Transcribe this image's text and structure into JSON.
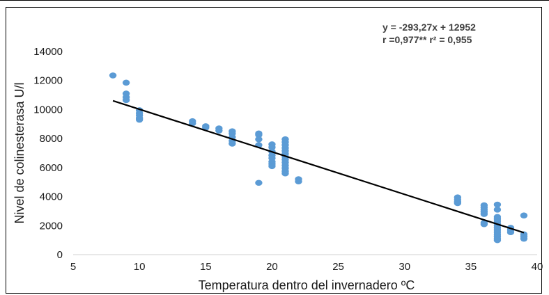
{
  "chart_data": {
    "type": "scatter",
    "title": "",
    "xlabel": "Temperatura dentro del invernadero ºC",
    "ylabel": "Nivel de colinesterasa U/l",
    "xlim": [
      5,
      40
    ],
    "ylim": [
      0,
      14000
    ],
    "x_ticks": [
      "5",
      "10",
      "15",
      "20",
      "25",
      "30",
      "35",
      "40"
    ],
    "y_ticks": [
      "0",
      "2000",
      "4000",
      "6000",
      "8000",
      "10000",
      "12000",
      "14000"
    ],
    "grid": false,
    "legend": "none",
    "annotation": {
      "line1": "y = -293,27x + 12952",
      "line2": "r =0,977**  r² = 0,955"
    },
    "trendline": {
      "slope": -293.27,
      "intercept": 12952,
      "x_range": [
        8,
        39
      ],
      "color": "#000000"
    },
    "marker_color": "#5b9bd5",
    "series": [
      {
        "points": [
          [
            8,
            12350
          ],
          [
            9,
            11850
          ],
          [
            9,
            11100
          ],
          [
            9,
            10850
          ],
          [
            9,
            10650
          ],
          [
            10,
            9950
          ],
          [
            10,
            9750
          ],
          [
            10,
            9600
          ],
          [
            10,
            9400
          ],
          [
            10,
            9300
          ],
          [
            14,
            9200
          ],
          [
            14,
            9050
          ],
          [
            15,
            8850
          ],
          [
            15,
            8750
          ],
          [
            16,
            8700
          ],
          [
            16,
            8550
          ],
          [
            17,
            8500
          ],
          [
            17,
            8350
          ],
          [
            17,
            8100
          ],
          [
            17,
            7850
          ],
          [
            17,
            7650
          ],
          [
            19,
            8350
          ],
          [
            19,
            8250
          ],
          [
            19,
            7950
          ],
          [
            19,
            7550
          ],
          [
            19,
            4950
          ],
          [
            20,
            7600
          ],
          [
            20,
            7400
          ],
          [
            20,
            7100
          ],
          [
            20,
            6850
          ],
          [
            20,
            6650
          ],
          [
            20,
            6400
          ],
          [
            20,
            6250
          ],
          [
            20,
            6100
          ],
          [
            21,
            7950
          ],
          [
            21,
            7750
          ],
          [
            21,
            7550
          ],
          [
            21,
            7350
          ],
          [
            21,
            7150
          ],
          [
            21,
            6950
          ],
          [
            21,
            6750
          ],
          [
            21,
            6550
          ],
          [
            21,
            6350
          ],
          [
            21,
            6150
          ],
          [
            21,
            5950
          ],
          [
            21,
            5750
          ],
          [
            21,
            5600
          ],
          [
            22,
            5200
          ],
          [
            22,
            5050
          ],
          [
            34,
            3950
          ],
          [
            34,
            3800
          ],
          [
            34,
            3650
          ],
          [
            34,
            3550
          ],
          [
            36,
            3400
          ],
          [
            36,
            3250
          ],
          [
            36,
            3100
          ],
          [
            36,
            2950
          ],
          [
            36,
            2800
          ],
          [
            36,
            2200
          ],
          [
            36,
            2100
          ],
          [
            37,
            3450
          ],
          [
            37,
            3100
          ],
          [
            37,
            2600
          ],
          [
            37,
            2450
          ],
          [
            37,
            2300
          ],
          [
            37,
            2150
          ],
          [
            37,
            2000
          ],
          [
            37,
            1850
          ],
          [
            37,
            1700
          ],
          [
            37,
            1550
          ],
          [
            37,
            1400
          ],
          [
            37,
            1250
          ],
          [
            37,
            1100
          ],
          [
            37,
            1000
          ],
          [
            38,
            1850
          ],
          [
            38,
            1700
          ],
          [
            38,
            1550
          ],
          [
            39,
            2700
          ],
          [
            39,
            1400
          ],
          [
            39,
            1250
          ],
          [
            39,
            1100
          ]
        ]
      }
    ]
  }
}
